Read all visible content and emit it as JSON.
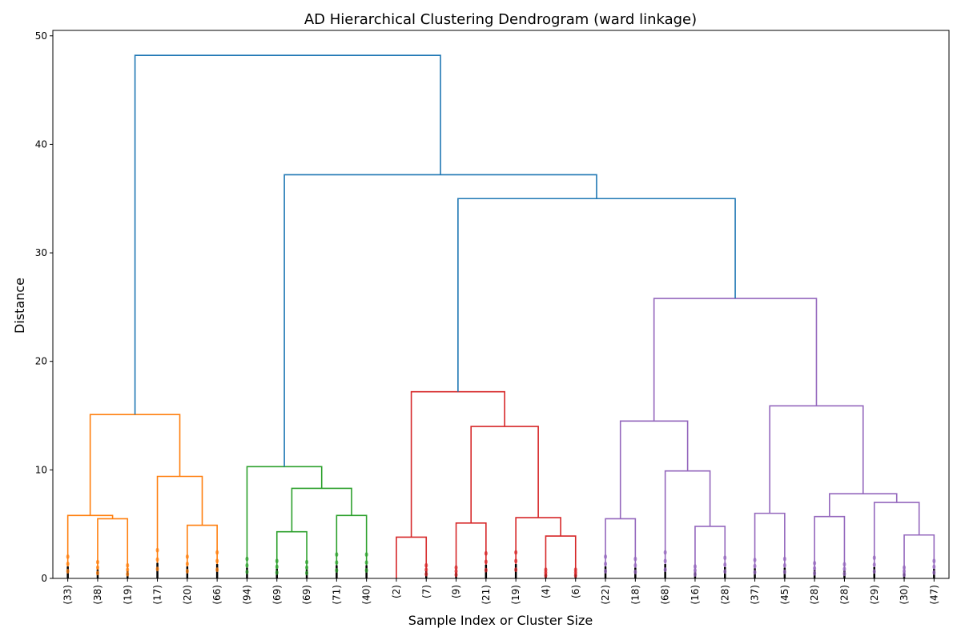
{
  "chart_data": {
    "type": "dendrogram",
    "title": "AD Hierarchical Clustering Dendrogram (ward linkage)",
    "xlabel": "Sample Index or Cluster Size",
    "ylabel": "Distance",
    "ylim": [
      0,
      50.5
    ],
    "yticks": [
      0,
      10,
      20,
      30,
      40,
      50
    ],
    "grid": false,
    "leaves": [
      "(33)",
      "(38)",
      "(19)",
      "(17)",
      "(20)",
      "(66)",
      "(94)",
      "(69)",
      "(69)",
      "(71)",
      "(40)",
      "(2)",
      "(7)",
      "(9)",
      "(21)",
      "(19)",
      "(4)",
      "(6)",
      "(22)",
      "(18)",
      "(68)",
      "(16)",
      "(28)",
      "(37)",
      "(45)",
      "(28)",
      "(28)",
      "(29)",
      "(30)",
      "(47)"
    ],
    "colors": {
      "above_threshold": "#1f77b4",
      "cluster_1": "#ff7f0e",
      "cluster_2": "#2ca02c",
      "cluster_3": "#d62728",
      "cluster_4": "#9467bd"
    },
    "merges": [
      {
        "a": 1,
        "b": 2,
        "height": 5.5,
        "color": "cluster_1"
      },
      {
        "a": 0,
        "b": "m0",
        "height": 5.8,
        "color": "cluster_1"
      },
      {
        "a": 4,
        "b": 5,
        "height": 4.9,
        "color": "cluster_1"
      },
      {
        "a": 3,
        "b": "m2",
        "height": 9.4,
        "color": "cluster_1"
      },
      {
        "a": "m1",
        "b": "m3",
        "height": 15.1,
        "color": "cluster_1"
      },
      {
        "a": 7,
        "b": 8,
        "height": 4.3,
        "color": "cluster_2"
      },
      {
        "a": 9,
        "b": 10,
        "height": 5.8,
        "color": "cluster_2"
      },
      {
        "a": "m5",
        "b": "m6",
        "height": 8.3,
        "color": "cluster_2"
      },
      {
        "a": 6,
        "b": "m7",
        "height": 10.3,
        "color": "cluster_2"
      },
      {
        "a": 11,
        "b": 12,
        "height": 3.8,
        "color": "cluster_3"
      },
      {
        "a": 13,
        "b": 14,
        "height": 5.1,
        "color": "cluster_3"
      },
      {
        "a": 16,
        "b": 17,
        "height": 3.9,
        "color": "cluster_3"
      },
      {
        "a": 15,
        "b": "m11",
        "height": 5.6,
        "color": "cluster_3"
      },
      {
        "a": "m10",
        "b": "m12",
        "height": 14.0,
        "color": "cluster_3"
      },
      {
        "a": "m9",
        "b": "m13",
        "height": 17.2,
        "color": "cluster_3"
      },
      {
        "a": 18,
        "b": 19,
        "height": 5.5,
        "color": "cluster_4"
      },
      {
        "a": 21,
        "b": 22,
        "height": 4.8,
        "color": "cluster_4"
      },
      {
        "a": 20,
        "b": "m16",
        "height": 9.9,
        "color": "cluster_4"
      },
      {
        "a": "m15",
        "b": "m17",
        "height": 14.5,
        "color": "cluster_4"
      },
      {
        "a": 23,
        "b": 24,
        "height": 6.0,
        "color": "cluster_4"
      },
      {
        "a": 25,
        "b": 26,
        "height": 5.7,
        "color": "cluster_4"
      },
      {
        "a": 28,
        "b": 29,
        "height": 4.0,
        "color": "cluster_4"
      },
      {
        "a": 27,
        "b": "m21",
        "height": 7.0,
        "color": "cluster_4"
      },
      {
        "a": "m20",
        "b": "m22",
        "height": 7.8,
        "color": "cluster_4"
      },
      {
        "a": "m19",
        "b": "m23",
        "height": 15.9,
        "color": "cluster_4"
      },
      {
        "a": "m18",
        "b": "m24",
        "height": 25.8,
        "color": "cluster_4"
      },
      {
        "a": "m14",
        "b": "m25",
        "height": 35.0,
        "color": "above_threshold"
      },
      {
        "a": "m8",
        "b": "m26",
        "height": 37.2,
        "color": "above_threshold"
      },
      {
        "a": "m4",
        "b": "m27",
        "height": 48.2,
        "color": "above_threshold"
      }
    ]
  }
}
